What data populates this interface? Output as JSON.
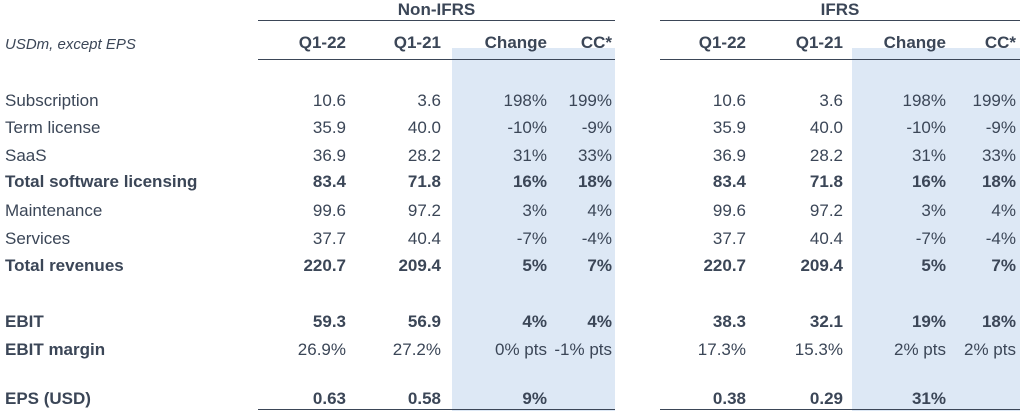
{
  "header": {
    "units": "USDm, except EPS",
    "groups": [
      "Non-IFRS",
      "IFRS"
    ],
    "columns": [
      "Q1-22",
      "Q1-21",
      "Change",
      "CC*",
      "Q1-22",
      "Q1-21",
      "Change",
      "CC*"
    ]
  },
  "rows": [
    {
      "label": "Subscription",
      "bold": false,
      "values": [
        "10.6",
        "3.6",
        "198%",
        "199%",
        "10.6",
        "3.6",
        "198%",
        "199%"
      ]
    },
    {
      "label": "Term license",
      "bold": false,
      "values": [
        "35.9",
        "40.0",
        "-10%",
        "-9%",
        "35.9",
        "40.0",
        "-10%",
        "-9%"
      ]
    },
    {
      "label": "SaaS",
      "bold": false,
      "values": [
        "36.9",
        "28.2",
        "31%",
        "33%",
        "36.9",
        "28.2",
        "31%",
        "33%"
      ]
    },
    {
      "label": "Total software licensing",
      "bold": true,
      "values": [
        "83.4",
        "71.8",
        "16%",
        "18%",
        "83.4",
        "71.8",
        "16%",
        "18%"
      ]
    },
    {
      "label": "Maintenance",
      "bold": false,
      "values": [
        "99.6",
        "97.2",
        "3%",
        "4%",
        "99.6",
        "97.2",
        "3%",
        "4%"
      ]
    },
    {
      "label": "Services",
      "bold": false,
      "values": [
        "37.7",
        "40.4",
        "-7%",
        "-4%",
        "37.7",
        "40.4",
        "-7%",
        "-4%"
      ]
    },
    {
      "label": "Total revenues",
      "bold": true,
      "values": [
        "220.7",
        "209.4",
        "5%",
        "7%",
        "220.7",
        "209.4",
        "5%",
        "7%"
      ]
    },
    {
      "label": "EBIT",
      "bold": true,
      "values": [
        "59.3",
        "56.9",
        "4%",
        "4%",
        "38.3",
        "32.1",
        "19%",
        "18%"
      ]
    },
    {
      "label": "EBIT margin",
      "bold": true,
      "values": [
        "26.9%",
        "27.2%",
        "0% pts",
        "-1% pts",
        "17.3%",
        "15.3%",
        "2% pts",
        "2% pts"
      ],
      "bold_values": false
    },
    {
      "label": "EPS (USD)",
      "bold": true,
      "values": [
        "0.63",
        "0.58",
        "9%",
        "",
        "0.38",
        "0.29",
        "31%",
        ""
      ]
    }
  ]
}
